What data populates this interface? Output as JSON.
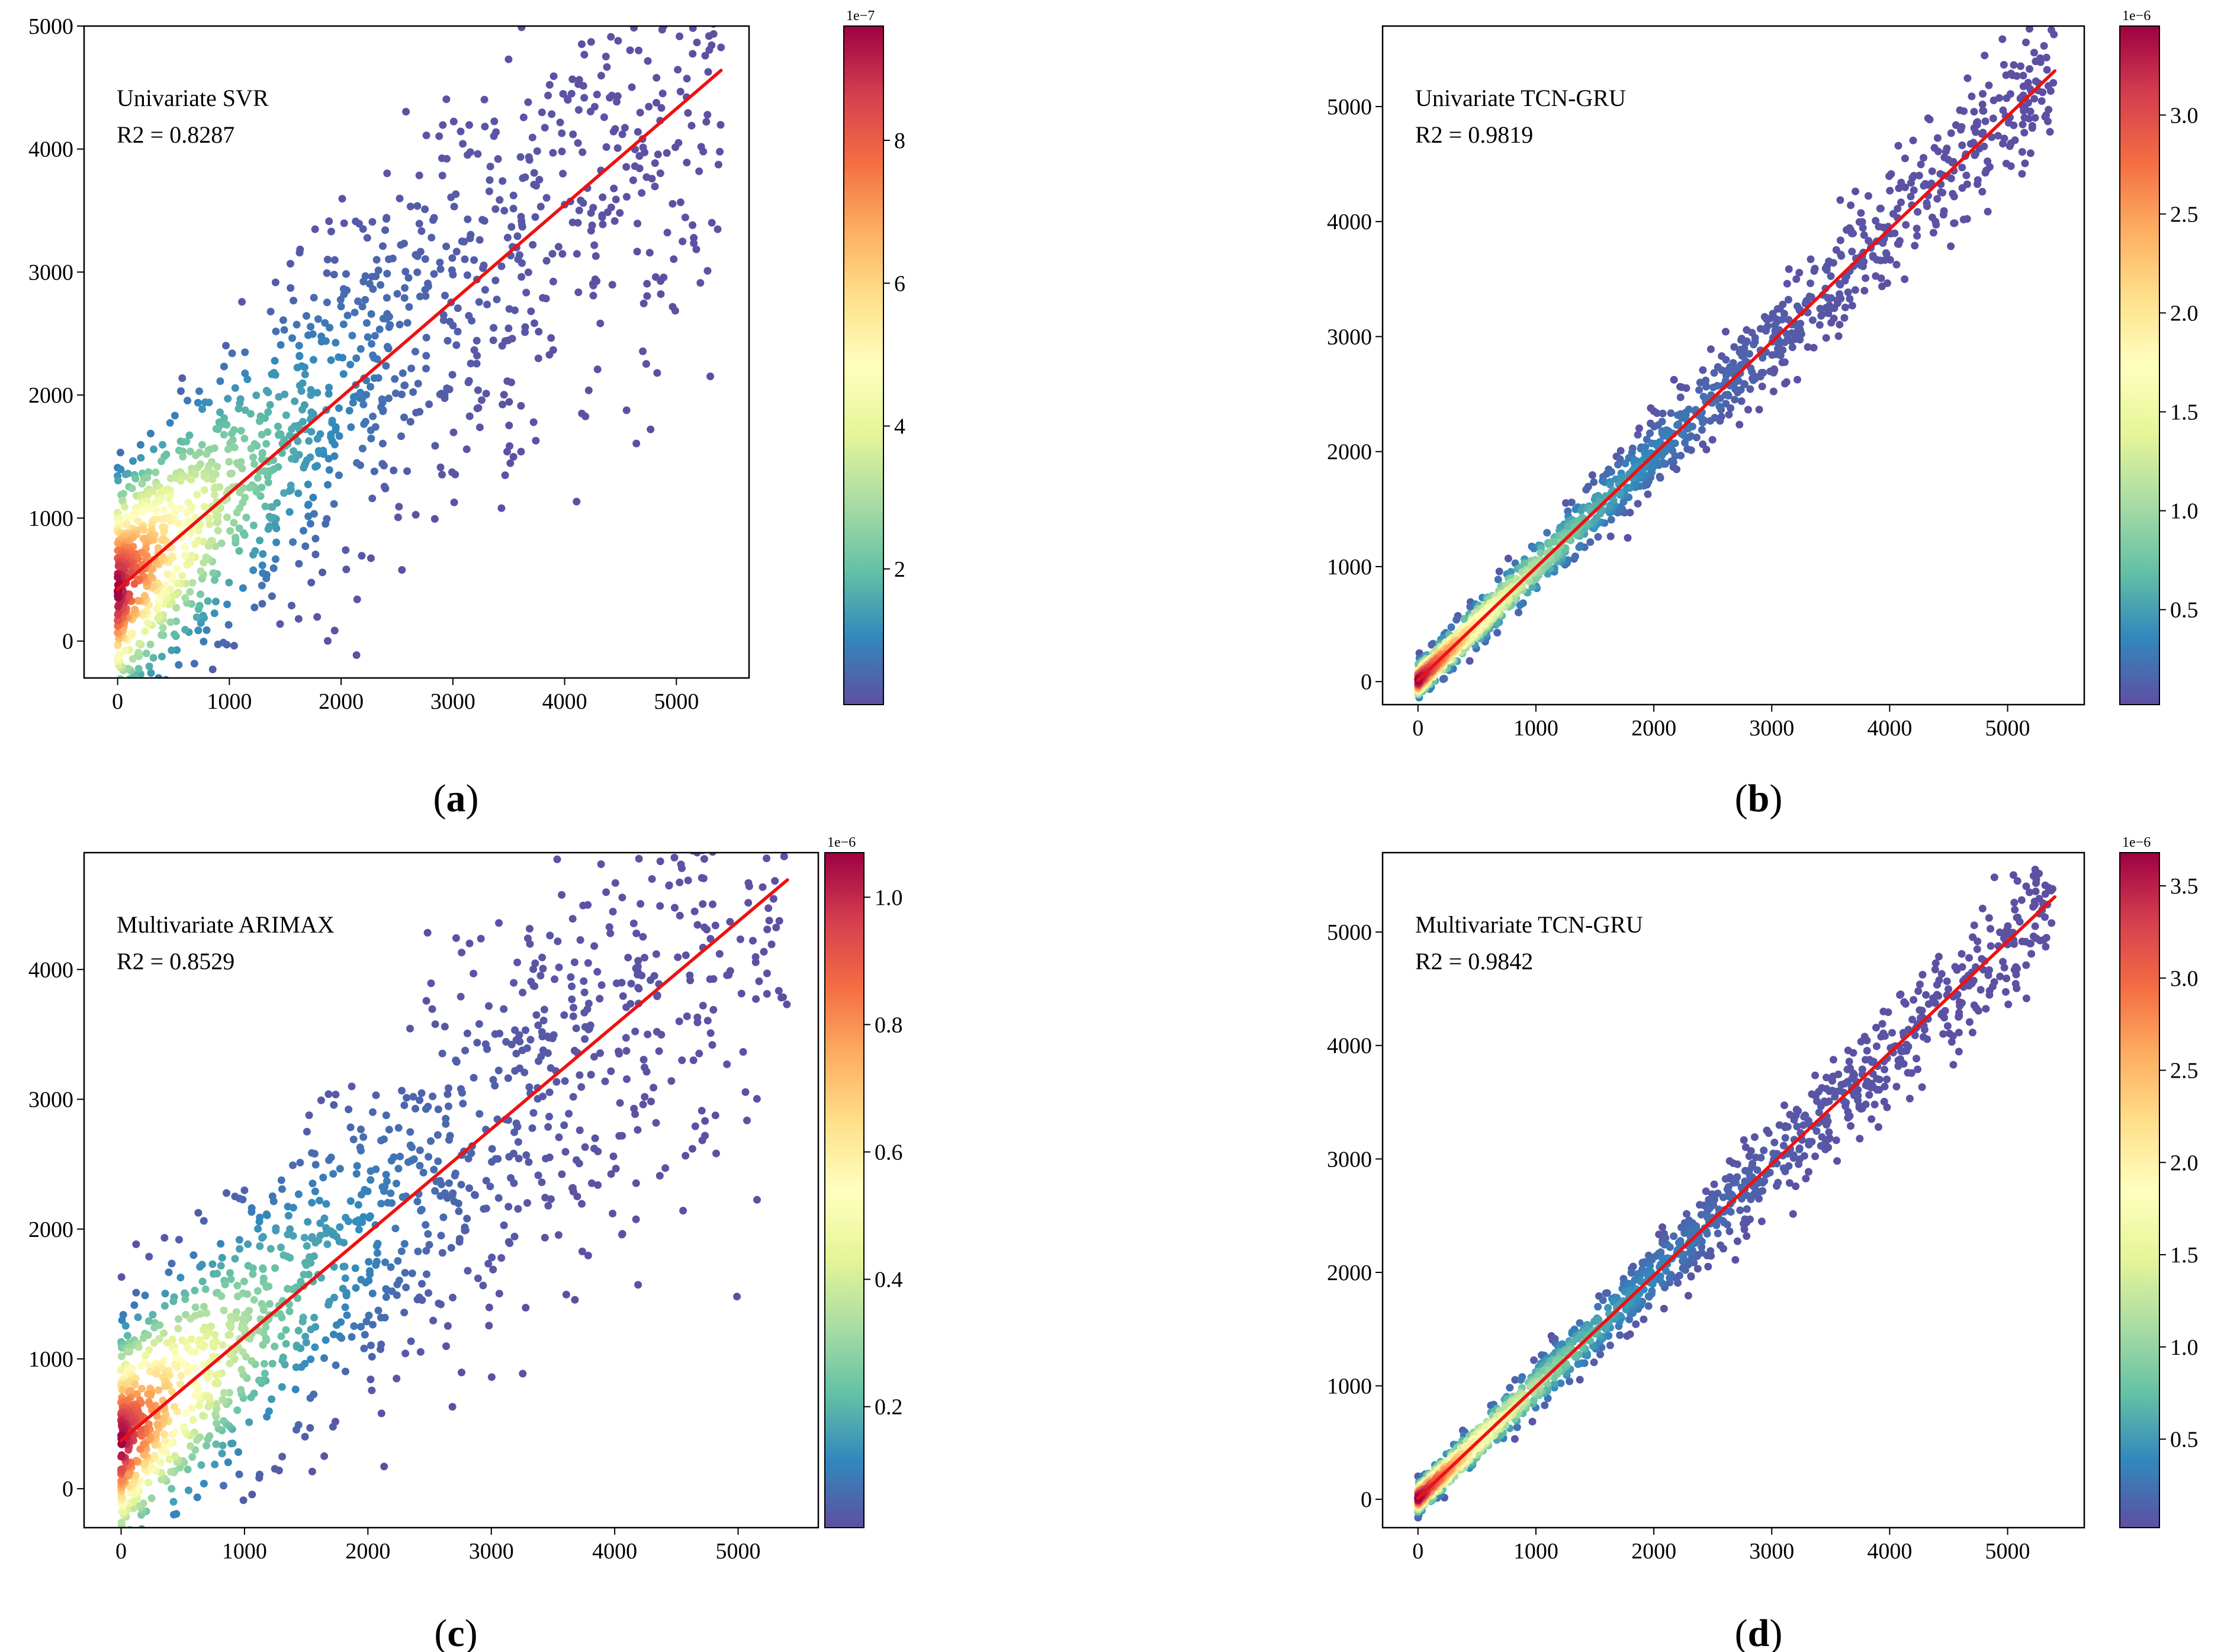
{
  "figure": {
    "colormap": "Spectral_r",
    "regression_line_color": "#ee1111",
    "colormap_stops": [
      "#5e4fa2",
      "#3288bd",
      "#66c2a5",
      "#abdda4",
      "#e6f598",
      "#ffffbf",
      "#fee08b",
      "#fdae61",
      "#f46d43",
      "#d53e4f",
      "#9e0142"
    ]
  },
  "chart_data": [
    {
      "type": "scatter",
      "panel_label": "(a)",
      "model": "Univariate SVR",
      "r2_text": "R2 = 0.8287",
      "x_ticks": [
        "0",
        "1000",
        "2000",
        "3000",
        "4000",
        "5000"
      ],
      "y_ticks": [
        "0",
        "1000",
        "2000",
        "3000",
        "4000",
        "5000"
      ],
      "xlim": [
        -300,
        5650
      ],
      "ylim": [
        -300,
        5000
      ],
      "fit_line": {
        "x": [
          0,
          5400
        ],
        "y": [
          420,
          4640
        ]
      },
      "scatter": {
        "n": 1400,
        "x_max": 5400,
        "scatter_base": 430,
        "scatter_slope": 0.13
      },
      "colorbar": {
        "exponent": "1e−7",
        "ticks": [
          "2",
          "4",
          "6",
          "8"
        ],
        "tick_values": [
          2,
          4,
          6,
          8
        ],
        "min": 0.1,
        "max": 9.6
      }
    },
    {
      "type": "scatter",
      "panel_label": "(b)",
      "model": "Univariate TCN-GRU",
      "r2_text": "R2 = 0.9819",
      "x_ticks": [
        "0",
        "1000",
        "2000",
        "3000",
        "4000",
        "5000"
      ],
      "y_ticks": [
        "0",
        "1000",
        "2000",
        "3000",
        "4000",
        "5000"
      ],
      "xlim": [
        -300,
        5650
      ],
      "ylim": [
        -200,
        5700
      ],
      "fit_line": {
        "x": [
          0,
          5400
        ],
        "y": [
          10,
          5310
        ]
      },
      "scatter": {
        "n": 1400,
        "x_max": 5400,
        "scatter_base": 70,
        "scatter_slope": 0.045
      },
      "colorbar": {
        "exponent": "1e−6",
        "ticks": [
          "0.5",
          "1.0",
          "1.5",
          "2.0",
          "2.5",
          "3.0"
        ],
        "tick_values": [
          0.5,
          1.0,
          1.5,
          2.0,
          2.5,
          3.0
        ],
        "min": 0.02,
        "max": 3.45
      }
    },
    {
      "type": "scatter",
      "panel_label": "(c)",
      "model": "Multivariate ARIMAX",
      "r2_text": "R2 = 0.8529",
      "x_ticks": [
        "0",
        "1000",
        "2000",
        "3000",
        "4000",
        "5000"
      ],
      "y_ticks": [
        "0",
        "1000",
        "2000",
        "3000",
        "4000"
      ],
      "xlim": [
        -300,
        5650
      ],
      "ylim": [
        -300,
        4900
      ],
      "fit_line": {
        "x": [
          0,
          5400
        ],
        "y": [
          370,
          4690
        ]
      },
      "scatter": {
        "n": 1400,
        "x_max": 5400,
        "scatter_base": 400,
        "scatter_slope": 0.12
      },
      "colorbar": {
        "exponent": "1e−6",
        "ticks": [
          "0.2",
          "0.4",
          "0.6",
          "0.8",
          "1.0"
        ],
        "tick_values": [
          0.2,
          0.4,
          0.6,
          0.8,
          1.0
        ],
        "min": 0.01,
        "max": 1.07
      }
    },
    {
      "type": "scatter",
      "panel_label": "(d)",
      "model": "Multivariate TCN-GRU",
      "r2_text": "R2 = 0.9842",
      "x_ticks": [
        "0",
        "1000",
        "2000",
        "3000",
        "4000",
        "5000"
      ],
      "y_ticks": [
        "0",
        "1000",
        "2000",
        "3000",
        "4000",
        "5000"
      ],
      "xlim": [
        -300,
        5650
      ],
      "ylim": [
        -250,
        5700
      ],
      "fit_line": {
        "x": [
          0,
          5400
        ],
        "y": [
          10,
          5310
        ]
      },
      "scatter": {
        "n": 1400,
        "x_max": 5400,
        "scatter_base": 65,
        "scatter_slope": 0.042
      },
      "colorbar": {
        "exponent": "1e−6",
        "ticks": [
          "0.5",
          "1.0",
          "1.5",
          "2.0",
          "2.5",
          "3.0",
          "3.5"
        ],
        "tick_values": [
          0.5,
          1.0,
          1.5,
          2.0,
          2.5,
          3.0,
          3.5
        ],
        "min": 0.02,
        "max": 3.68
      }
    }
  ]
}
